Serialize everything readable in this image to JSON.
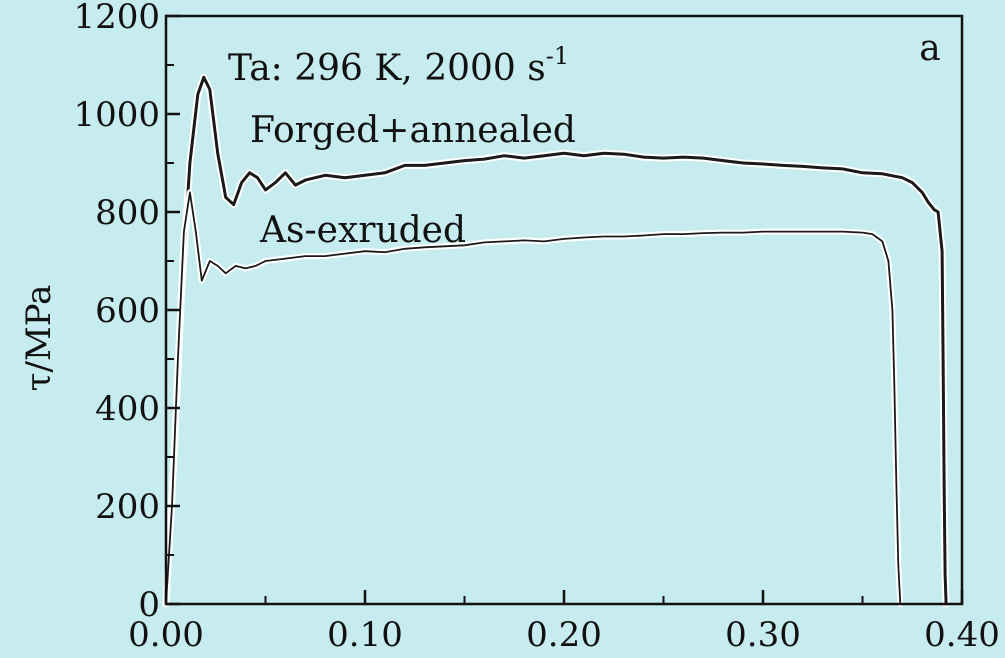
{
  "chart_data": {
    "type": "line",
    "title": "",
    "xlabel": "",
    "ylabel": "τ/MPa",
    "xlim": [
      0,
      0.4
    ],
    "ylim": [
      0,
      1200
    ],
    "x_ticks": [
      "0.00",
      "0.10",
      "0.20",
      "0.30",
      "0.40"
    ],
    "y_ticks": [
      "0",
      "200",
      "400",
      "600",
      "800",
      "1000",
      "1200"
    ],
    "grid": false,
    "panel_label": "a",
    "condition_text": "Ta: 296 K, 2000 s",
    "condition_superscript": "-1",
    "colors": {
      "outline": "#ffffff",
      "line": "#1a1a1a",
      "background": "#c6ecef"
    },
    "series": [
      {
        "label_text": "Forged+annealed",
        "x": [
          0.0,
          0.004,
          0.008,
          0.012,
          0.016,
          0.019,
          0.022,
          0.026,
          0.03,
          0.034,
          0.038,
          0.042,
          0.046,
          0.05,
          0.055,
          0.06,
          0.065,
          0.07,
          0.08,
          0.09,
          0.1,
          0.11,
          0.12,
          0.13,
          0.14,
          0.15,
          0.16,
          0.17,
          0.18,
          0.19,
          0.2,
          0.21,
          0.22,
          0.23,
          0.24,
          0.25,
          0.26,
          0.27,
          0.28,
          0.29,
          0.3,
          0.31,
          0.32,
          0.33,
          0.34,
          0.35,
          0.36,
          0.37,
          0.375,
          0.38,
          0.383,
          0.386,
          0.388,
          0.39,
          0.3905,
          0.391,
          0.3915,
          0.392
        ],
        "y": [
          0,
          300,
          650,
          900,
          1040,
          1075,
          1050,
          920,
          830,
          815,
          860,
          880,
          870,
          845,
          860,
          880,
          855,
          865,
          875,
          870,
          875,
          880,
          895,
          895,
          900,
          905,
          908,
          915,
          910,
          915,
          920,
          915,
          920,
          918,
          912,
          910,
          912,
          910,
          905,
          900,
          898,
          895,
          893,
          890,
          888,
          880,
          878,
          870,
          860,
          840,
          820,
          805,
          800,
          720,
          500,
          250,
          60,
          0
        ]
      },
      {
        "label_text": "As-exruded",
        "x": [
          0.0,
          0.003,
          0.006,
          0.009,
          0.012,
          0.015,
          0.018,
          0.022,
          0.026,
          0.03,
          0.035,
          0.04,
          0.045,
          0.05,
          0.06,
          0.07,
          0.08,
          0.09,
          0.1,
          0.11,
          0.12,
          0.13,
          0.14,
          0.15,
          0.16,
          0.17,
          0.18,
          0.19,
          0.2,
          0.21,
          0.22,
          0.23,
          0.24,
          0.25,
          0.26,
          0.27,
          0.28,
          0.29,
          0.3,
          0.31,
          0.32,
          0.33,
          0.34,
          0.35,
          0.355,
          0.36,
          0.363,
          0.365,
          0.366,
          0.367,
          0.368,
          0.369
        ],
        "y": [
          0,
          200,
          500,
          760,
          840,
          760,
          660,
          700,
          690,
          675,
          690,
          685,
          690,
          700,
          705,
          710,
          710,
          715,
          720,
          718,
          725,
          728,
          730,
          732,
          738,
          740,
          742,
          740,
          745,
          748,
          750,
          750,
          752,
          755,
          755,
          757,
          758,
          758,
          760,
          760,
          760,
          760,
          760,
          758,
          755,
          740,
          700,
          600,
          450,
          250,
          80,
          0
        ]
      }
    ]
  }
}
